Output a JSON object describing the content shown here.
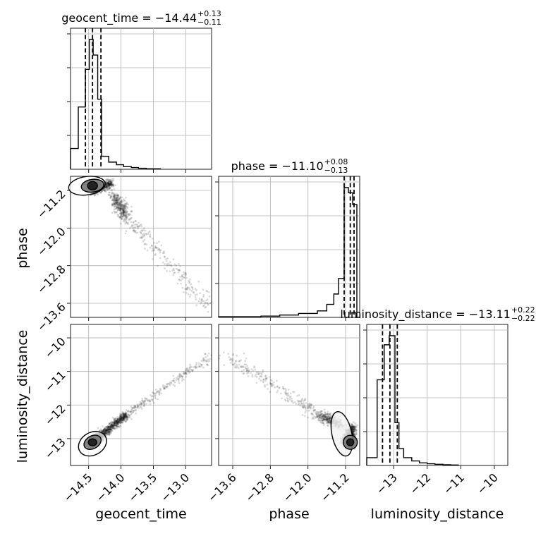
{
  "chart_data": {
    "type": "corner",
    "parameters": [
      {
        "key": "geocent_time",
        "label": "geocent_time",
        "range": [
          -14.78,
          -12.6
        ],
        "ticks": [
          -14.5,
          -14.0,
          -13.5,
          -13.0
        ],
        "tick_labels": [
          "−14.5",
          "−14.0",
          "−13.5",
          "−13.0"
        ],
        "title": {
          "main": "geocent_time = −14.44",
          "sup": "+0.13",
          "sub": "−0.11"
        },
        "quantiles": [
          -14.55,
          -14.44,
          -14.31
        ],
        "hist_edges": [
          -14.78,
          -14.66,
          -14.55,
          -14.49,
          -14.43,
          -14.36,
          -14.3,
          -14.19,
          -14.07,
          -13.96,
          -13.84,
          -13.73,
          -13.61,
          -13.39
        ],
        "hist_counts": [
          0.16,
          0.48,
          0.77,
          1.0,
          0.88,
          0.54,
          0.1,
          0.055,
          0.035,
          0.02,
          0.013,
          0.008,
          0.004
        ]
      },
      {
        "key": "phase",
        "label": "phase",
        "range": [
          -13.9,
          -10.9
        ],
        "ticks": [
          -13.6,
          -12.8,
          -12.0,
          -11.2
        ],
        "tick_labels": [
          "−13.6",
          "−12.8",
          "−12.0",
          "−11.2"
        ],
        "title": {
          "main": "phase = −11.10",
          "sup": "+0.08",
          "sub": "−0.13"
        },
        "quantiles": [
          -11.23,
          -11.1,
          -11.02
        ],
        "hist_edges": [
          -13.9,
          -13.0,
          -12.6,
          -12.2,
          -11.8,
          -11.6,
          -11.45,
          -11.35,
          -11.23,
          -11.14,
          -11.05,
          -10.96,
          -10.9
        ],
        "hist_counts": [
          0.005,
          0.01,
          0.018,
          0.03,
          0.05,
          0.1,
          0.18,
          0.3,
          1.0,
          0.96,
          0.87,
          0.0
        ]
      },
      {
        "key": "luminosity_distance",
        "label": "luminosity_distance",
        "range": [
          -13.8,
          -9.6
        ],
        "ticks": [
          -13,
          -12,
          -11,
          -10
        ],
        "tick_labels": [
          "−13",
          "−12",
          "−11",
          "−10"
        ],
        "title": {
          "main": "luminosity_distance = −13.11",
          "sup": "+0.22",
          "sub": "−0.22"
        },
        "quantiles": [
          -13.33,
          -13.11,
          -12.89
        ],
        "hist_edges": [
          -13.8,
          -13.49,
          -13.28,
          -13.13,
          -12.96,
          -12.84,
          -12.7,
          -12.46,
          -12.23,
          -12.0,
          -11.77,
          -11.53,
          -11.3,
          -11.07
        ],
        "hist_counts": [
          0.06,
          0.66,
          0.93,
          1.0,
          0.33,
          0.13,
          0.06,
          0.035,
          0.02,
          0.013,
          0.009,
          0.006,
          0.004
        ]
      }
    ],
    "grid": true,
    "samples_color": "#000000"
  }
}
